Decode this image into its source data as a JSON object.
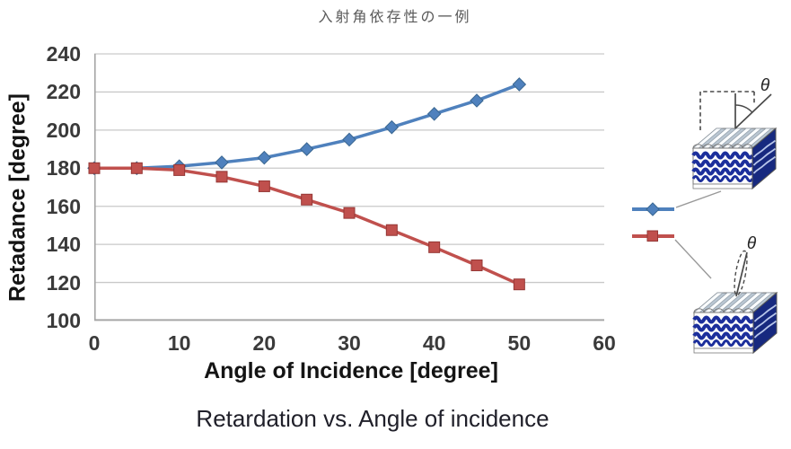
{
  "title": "入射角依存性の一例",
  "caption": "Retardation vs. Angle of incidence",
  "chart_data": {
    "type": "line",
    "title": "入射角依存性の一例",
    "xlabel": "Angle of Incidence [degree]",
    "ylabel": "Retadance [degree]",
    "xlim": [
      0,
      60
    ],
    "ylim": [
      100,
      240
    ],
    "x_ticks": [
      0,
      10,
      20,
      30,
      40,
      50,
      60
    ],
    "y_ticks": [
      240,
      220,
      200,
      180,
      160,
      140,
      120,
      100
    ],
    "grid": "horizontal",
    "legend_position": "right-pictorial",
    "x": [
      0,
      5,
      10,
      15,
      20,
      25,
      30,
      35,
      40,
      45,
      50
    ],
    "series": [
      {
        "name": "blue-diamond-series",
        "marker": "diamond",
        "color": "#4F81BD",
        "edge": "#3a6791",
        "values": [
          180,
          180,
          181,
          183,
          185.5,
          190,
          195,
          201.5,
          208.5,
          215.5,
          224
        ]
      },
      {
        "name": "red-square-series",
        "marker": "square",
        "color": "#C0504D",
        "edge": "#953735",
        "values": [
          180,
          180,
          179,
          175.5,
          170.5,
          163.5,
          156.5,
          147.5,
          138.5,
          129,
          119
        ]
      }
    ]
  },
  "legend": {
    "theta_upper": "θ",
    "theta_lower": "θ"
  },
  "colors": {
    "grid": "#c9c9c9",
    "axis": "#a6a6a6",
    "tick_text": "#3a3a3a",
    "diagram_navy": "#1c2f9c",
    "connector": "#999999"
  }
}
